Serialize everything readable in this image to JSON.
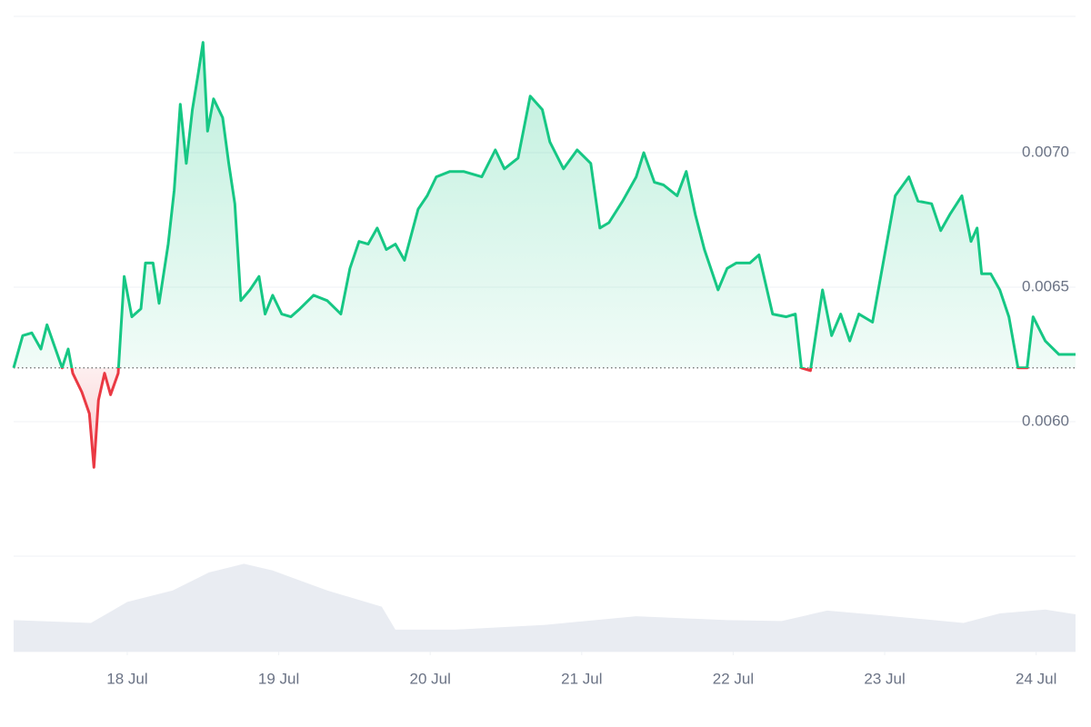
{
  "chart_data": {
    "type": "line",
    "x": [
      17.25,
      17.31,
      17.37,
      17.43,
      17.47,
      17.52,
      17.57,
      17.61,
      17.64,
      17.7,
      17.75,
      17.78,
      17.81,
      17.85,
      17.89,
      17.94,
      17.98,
      18.03,
      18.09,
      18.12,
      18.17,
      18.21,
      18.27,
      18.31,
      18.35,
      18.39,
      18.43,
      18.47,
      18.5,
      18.53,
      18.57,
      18.63,
      18.67,
      18.71,
      18.75,
      18.81,
      18.87,
      18.91,
      18.96,
      19.02,
      19.08,
      19.14,
      19.23,
      19.32,
      19.41,
      19.47,
      19.53,
      19.59,
      19.65,
      19.71,
      19.77,
      19.83,
      19.92,
      19.98,
      20.04,
      20.13,
      20.22,
      20.34,
      20.43,
      20.49,
      20.58,
      20.66,
      20.74,
      20.79,
      20.88,
      20.97,
      21.06,
      21.12,
      21.18,
      21.27,
      21.36,
      21.41,
      21.48,
      21.54,
      21.63,
      21.69,
      21.75,
      21.81,
      21.9,
      21.96,
      22.02,
      22.11,
      22.17,
      22.26,
      22.35,
      22.41,
      22.45,
      22.51,
      22.59,
      22.65,
      22.71,
      22.77,
      22.83,
      22.92,
      22.99,
      23.07,
      23.16,
      23.22,
      23.31,
      23.37,
      23.43,
      23.51,
      23.57,
      23.61,
      23.64,
      23.7,
      23.76,
      23.82,
      23.88,
      23.94,
      23.98,
      24.06,
      24.15,
      24.26
    ],
    "values": [
      0.0062,
      0.00632,
      0.00633,
      0.00627,
      0.00636,
      0.00628,
      0.0062,
      0.00627,
      0.00618,
      0.00611,
      0.00603,
      0.00583,
      0.00608,
      0.00618,
      0.0061,
      0.00618,
      0.00654,
      0.00639,
      0.00642,
      0.00659,
      0.00659,
      0.00644,
      0.00666,
      0.00686,
      0.00718,
      0.00696,
      0.00716,
      0.0073,
      0.00741,
      0.00708,
      0.0072,
      0.00713,
      0.00696,
      0.00681,
      0.00645,
      0.00649,
      0.00654,
      0.0064,
      0.00647,
      0.0064,
      0.00639,
      0.00642,
      0.00647,
      0.00645,
      0.0064,
      0.00657,
      0.00667,
      0.00666,
      0.00672,
      0.00664,
      0.00666,
      0.0066,
      0.00679,
      0.00684,
      0.00691,
      0.00693,
      0.00693,
      0.00691,
      0.00701,
      0.00694,
      0.00698,
      0.00721,
      0.00716,
      0.00704,
      0.00694,
      0.00701,
      0.00696,
      0.00672,
      0.00674,
      0.00682,
      0.00691,
      0.007,
      0.00689,
      0.00688,
      0.00684,
      0.00693,
      0.00677,
      0.00664,
      0.00649,
      0.00657,
      0.00659,
      0.00659,
      0.00662,
      0.0064,
      0.00639,
      0.0064,
      0.0062,
      0.00619,
      0.00649,
      0.00632,
      0.0064,
      0.0063,
      0.0064,
      0.00637,
      0.00659,
      0.00684,
      0.00691,
      0.00682,
      0.00681,
      0.00671,
      0.00677,
      0.00684,
      0.00667,
      0.00672,
      0.00655,
      0.00655,
      0.00649,
      0.00639,
      0.0062,
      0.0062,
      0.00639,
      0.0063,
      0.00625,
      0.00625
    ],
    "baseline": 0.0062,
    "color": "#16c784",
    "down_color": "#ea3943",
    "xlim": [
      17.25,
      24.26
    ],
    "xticks": [
      {
        "value": 18,
        "label": "18 Jul"
      },
      {
        "value": 19,
        "label": "19 Jul"
      },
      {
        "value": 20,
        "label": "20 Jul"
      },
      {
        "value": 21,
        "label": "21 Jul"
      },
      {
        "value": 22,
        "label": "22 Jul"
      },
      {
        "value": 23,
        "label": "23 Jul"
      },
      {
        "value": 24,
        "label": "24 Jul"
      }
    ],
    "ylim": [
      0.0055,
      0.0075
    ],
    "yticks": [
      {
        "value": 0.006,
        "label": "0.0060"
      },
      {
        "value": 0.0065,
        "label": "0.0065"
      },
      {
        "value": 0.007,
        "label": "0.0070"
      }
    ],
    "grid": true,
    "volume": {
      "x": [
        17.25,
        17.76,
        18.0,
        18.3,
        18.54,
        18.77,
        18.96,
        19.32,
        19.68,
        19.77,
        20.16,
        20.76,
        21.36,
        21.96,
        22.32,
        22.62,
        22.98,
        23.52,
        23.76,
        24.06,
        24.26
      ],
      "values": [
        33,
        30,
        52,
        64,
        83,
        92,
        85,
        64,
        47,
        23,
        23,
        28,
        37,
        33,
        32,
        43,
        38,
        30,
        40,
        44,
        39
      ],
      "ylim": [
        0,
        100
      ],
      "color": "#e9ecf2"
    }
  }
}
